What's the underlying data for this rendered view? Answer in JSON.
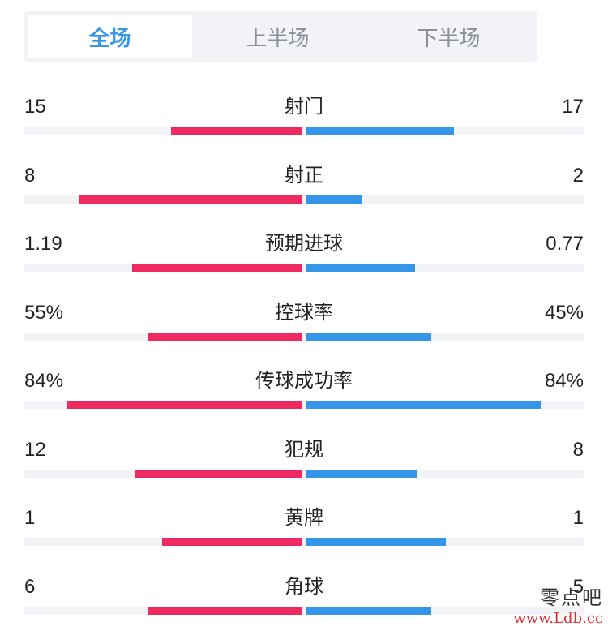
{
  "tabs": [
    {
      "label": "全场",
      "active": true
    },
    {
      "label": "上半场",
      "active": false
    },
    {
      "label": "下半场",
      "active": false
    }
  ],
  "colors": {
    "home": "#ee2a61",
    "away": "#3596e9",
    "active_tab": "#3a97e6"
  },
  "stats": [
    {
      "label": "射门",
      "left": "15",
      "right": "17",
      "left_share": 0.47,
      "right_share": 0.53
    },
    {
      "label": "射正",
      "left": "8",
      "right": "2",
      "left_share": 0.8,
      "right_share": 0.2
    },
    {
      "label": "预期进球",
      "left": "1.19",
      "right": "0.77",
      "left_share": 0.61,
      "right_share": 0.39
    },
    {
      "label": "控球率",
      "left": "55%",
      "right": "45%",
      "left_share": 0.55,
      "right_share": 0.45
    },
    {
      "label": "传球成功率",
      "left": "84%",
      "right": "84%",
      "left_share": 0.84,
      "right_share": 0.84
    },
    {
      "label": "犯规",
      "left": "12",
      "right": "8",
      "left_share": 0.6,
      "right_share": 0.4
    },
    {
      "label": "黄牌",
      "left": "1",
      "right": "1",
      "left_share": 0.5,
      "right_share": 0.5
    },
    {
      "label": "角球",
      "left": "6",
      "right": "5",
      "left_share": 0.55,
      "right_share": 0.45
    }
  ],
  "watermark": {
    "name": "零点吧",
    "url": "www.Ldb.cc"
  }
}
